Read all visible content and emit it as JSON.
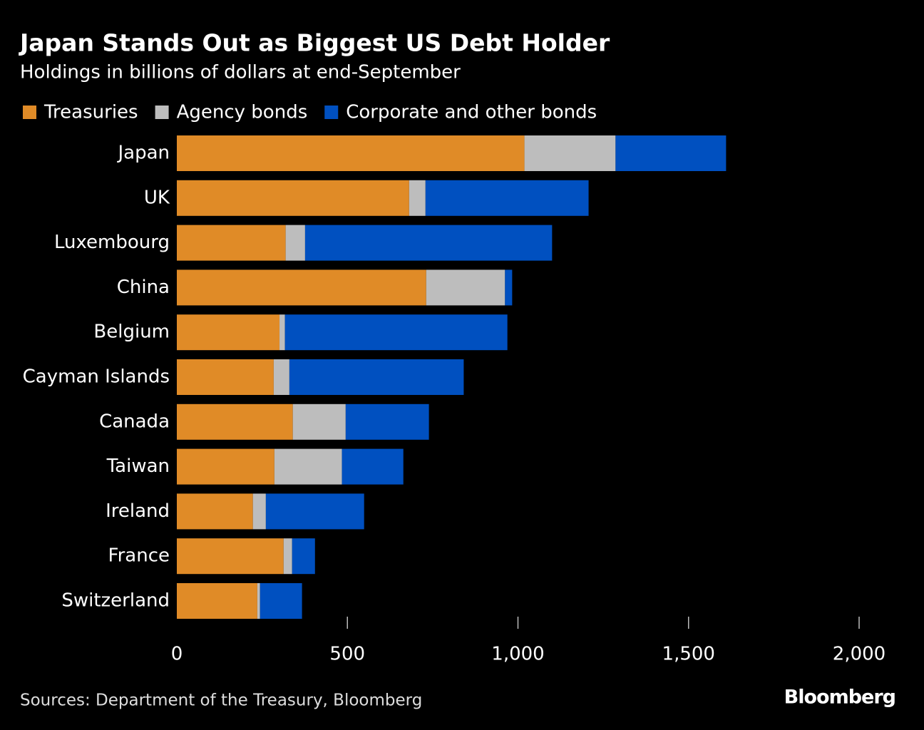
{
  "chart_data": {
    "type": "stacked-bar-horizontal",
    "title": "Japan Stands Out as Biggest US Debt Holder",
    "subtitle": "Holdings in billions of dollars at end-September",
    "source": "Sources: Department of the Treasury, Bloomberg",
    "brand": "Bloomberg",
    "categories": [
      "Japan",
      "UK",
      "Luxembourg",
      "China",
      "Belgium",
      "Cayman Islands",
      "Canada",
      "Taiwan",
      "Ireland",
      "France",
      "Switzerland"
    ],
    "series": [
      {
        "name": "Treasuries",
        "color": "#e08b27",
        "values": [
          1019,
          681,
          319,
          731,
          301,
          284,
          340,
          286,
          223,
          313,
          236
        ]
      },
      {
        "name": "Agency bonds",
        "color": "#bdbdbd",
        "values": [
          267,
          48,
          57,
          231,
          16,
          46,
          155,
          198,
          38,
          25,
          8
        ]
      },
      {
        "name": "Corporate and other bonds",
        "color": "#0050c0",
        "values": [
          324,
          478,
          724,
          21,
          652,
          511,
          244,
          180,
          288,
          67,
          123
        ]
      }
    ],
    "xlim": [
      0,
      2000
    ],
    "xticks": [
      0,
      500,
      {
        "value": 1000,
        "label": "1,000"
      },
      {
        "value": 1500,
        "label": "1,500"
      },
      {
        "value": 2000,
        "label": "2,000"
      }
    ]
  }
}
